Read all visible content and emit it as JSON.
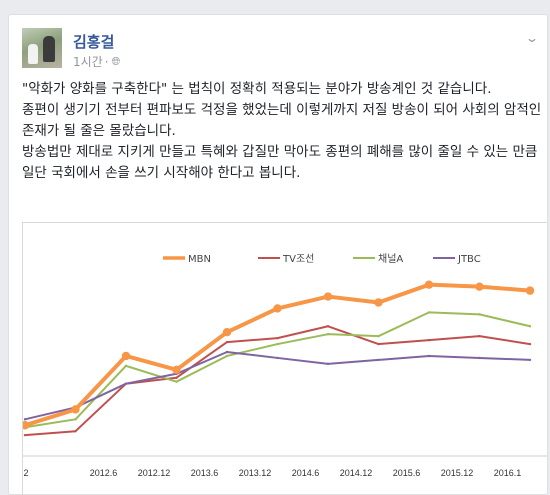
{
  "post": {
    "author": "김홍걸",
    "time": "1시간",
    "separator": "·",
    "privacy_icon": "globe-icon",
    "menu_icon": "chevron-down-icon",
    "paragraphs": [
      "\"악화가 양화를 구축한다\" 는 법칙이 정확히 적용되는 분야가 방송계인 것 같습니다.",
      "종편이 생기기 전부터 편파보도 걱정을 했었는데 이렇게까지 저질 방송이 되어 사회의 암적인 존재가 될 줄은 몰랐습니다.",
      "방송법만 제대로 지키게 만들고 특혜와 갑질만 막아도 종편의 폐해를 많이 줄일 수 있는 만큼 일단 국회에서 손을 쓰기 시작해야 한다고 봅니다."
    ]
  },
  "chart_data": {
    "type": "line",
    "categories": [
      "2",
      "2012.6",
      "2012.12",
      "2013.6",
      "2013.12",
      "2014.6",
      "2014.12",
      "2015.6",
      "2015.12",
      "2016.1",
      "2016"
    ],
    "y_axis_labels": "none",
    "ylim": [
      0,
      100
    ],
    "grid": false,
    "legend": "top",
    "series": [
      {
        "name": "MBN",
        "color": "#f79646",
        "values": [
          13,
          21,
          48,
          41,
          60,
          72,
          78,
          75,
          84,
          83,
          81
        ]
      },
      {
        "name": "TV조선",
        "color": "#c0504d",
        "values": [
          8,
          10,
          34,
          37,
          55,
          57,
          63,
          54,
          56,
          58,
          54
        ]
      },
      {
        "name": "채널A",
        "color": "#9bbb59",
        "values": [
          12,
          16,
          43,
          35,
          48,
          54,
          59,
          58,
          70,
          69,
          63
        ]
      },
      {
        "name": "JTBC",
        "color": "#8064a2",
        "values": [
          16,
          22,
          34,
          39,
          50,
          47,
          44,
          46,
          48,
          47,
          46
        ]
      }
    ]
  }
}
